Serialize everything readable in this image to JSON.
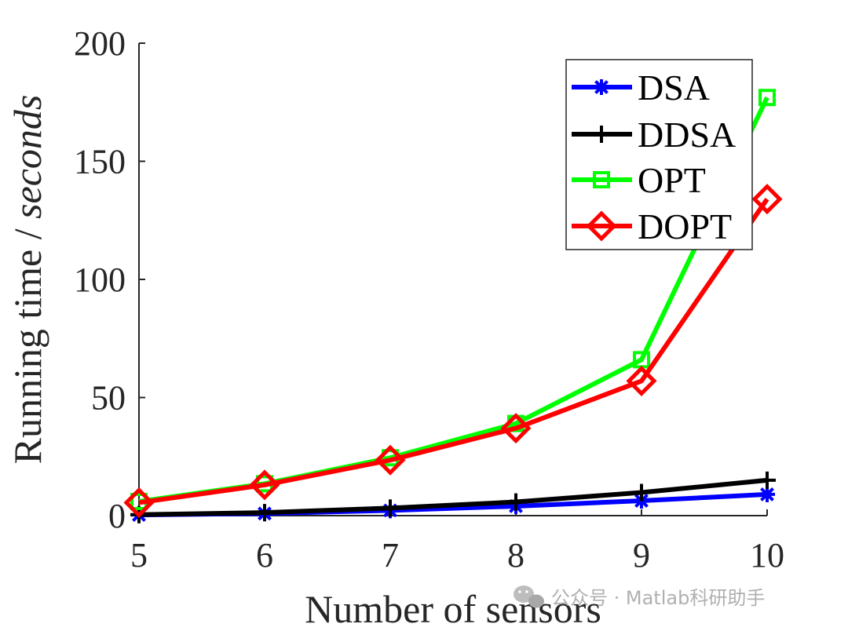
{
  "chart_data": {
    "type": "line",
    "title": "",
    "xlabel": "Number of sensors",
    "ylabel_main": "Running time / ",
    "ylabel_italic": "seconds",
    "x": [
      5,
      6,
      7,
      8,
      9,
      10
    ],
    "xlim": [
      5,
      10
    ],
    "ylim": [
      0,
      200
    ],
    "xticks": [
      "5",
      "6",
      "7",
      "8",
      "9",
      "10"
    ],
    "yticks": [
      "0",
      "50",
      "100",
      "150",
      "200"
    ],
    "grid": false,
    "legend_position": "top-right",
    "series": [
      {
        "name": "DSA",
        "color": "#0000ff",
        "marker": "asterisk",
        "values": [
          0.3,
          0.9,
          2.2,
          4.0,
          6.3,
          9.0
        ]
      },
      {
        "name": "DDSA",
        "color": "#000000",
        "marker": "plus",
        "values": [
          0.4,
          1.3,
          3.2,
          5.8,
          9.8,
          15.0
        ]
      },
      {
        "name": "OPT",
        "color": "#00ff00",
        "marker": "square",
        "values": [
          6.0,
          13.5,
          24.5,
          39.0,
          66.0,
          177.0
        ]
      },
      {
        "name": "DOPT",
        "color": "#ff0000",
        "marker": "diamond",
        "values": [
          5.5,
          13.0,
          23.5,
          37.0,
          57.0,
          134.0
        ]
      }
    ]
  },
  "watermark": {
    "text": "公众号 · Matlab科研助手",
    "icon": "wechat-icon"
  }
}
